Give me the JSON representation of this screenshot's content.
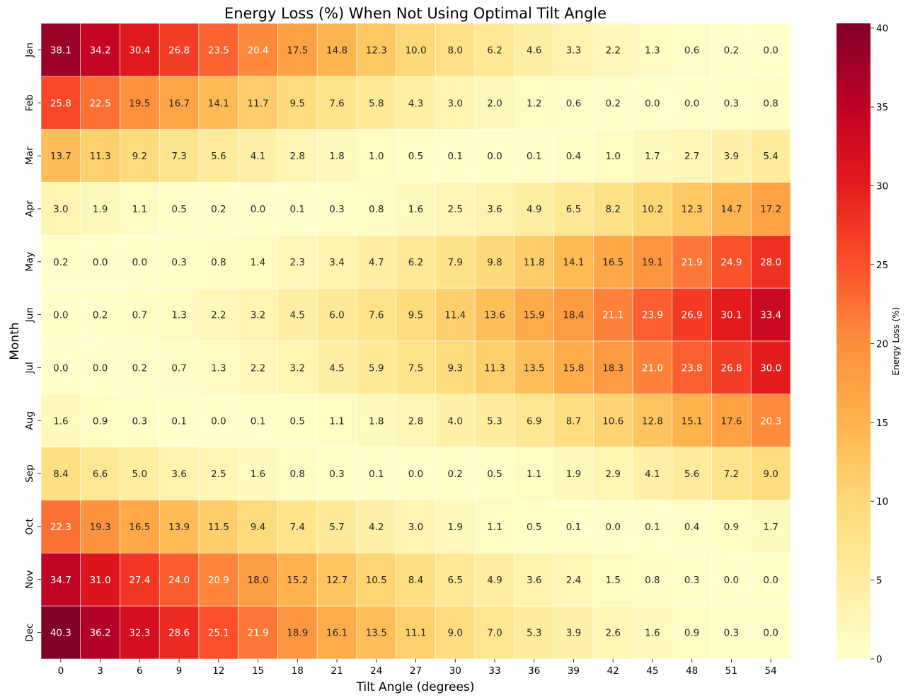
{
  "chart_data": {
    "type": "heatmap",
    "title": "Energy Loss (%) When Not Using Optimal Tilt Angle",
    "xlabel": "Tilt Angle (degrees)",
    "ylabel": "Month",
    "colorbar_label": "Energy Loss (%)",
    "colormap": "YlOrRd",
    "value_range": [
      0,
      40.3
    ],
    "colorbar_ticks": [
      0,
      5,
      10,
      15,
      20,
      25,
      30,
      35,
      40
    ],
    "x": [
      0,
      3,
      6,
      9,
      12,
      15,
      18,
      21,
      24,
      27,
      30,
      33,
      36,
      39,
      42,
      45,
      48,
      51,
      54
    ],
    "y": [
      "Jan",
      "Feb",
      "Mar",
      "Apr",
      "May",
      "Jun",
      "Jul",
      "Aug",
      "Sep",
      "Oct",
      "Nov",
      "Dec"
    ],
    "values": [
      [
        38.1,
        34.2,
        30.4,
        26.8,
        23.5,
        20.4,
        17.5,
        14.8,
        12.3,
        10.0,
        8.0,
        6.2,
        4.6,
        3.3,
        2.2,
        1.3,
        0.6,
        0.2,
        0.0
      ],
      [
        25.8,
        22.5,
        19.5,
        16.7,
        14.1,
        11.7,
        9.5,
        7.6,
        5.8,
        4.3,
        3.0,
        2.0,
        1.2,
        0.6,
        0.2,
        0.0,
        0.0,
        0.3,
        0.8
      ],
      [
        13.7,
        11.3,
        9.2,
        7.3,
        5.6,
        4.1,
        2.8,
        1.8,
        1.0,
        0.5,
        0.1,
        0.0,
        0.1,
        0.4,
        1.0,
        1.7,
        2.7,
        3.9,
        5.4
      ],
      [
        3.0,
        1.9,
        1.1,
        0.5,
        0.2,
        0.0,
        0.1,
        0.3,
        0.8,
        1.6,
        2.5,
        3.6,
        4.9,
        6.5,
        8.2,
        10.2,
        12.3,
        14.7,
        17.2
      ],
      [
        0.2,
        0.0,
        0.0,
        0.3,
        0.8,
        1.4,
        2.3,
        3.4,
        4.7,
        6.2,
        7.9,
        9.8,
        11.8,
        14.1,
        16.5,
        19.1,
        21.9,
        24.9,
        28.0
      ],
      [
        0.0,
        0.2,
        0.7,
        1.3,
        2.2,
        3.2,
        4.5,
        6.0,
        7.6,
        9.5,
        11.4,
        13.6,
        15.9,
        18.4,
        21.1,
        23.9,
        26.9,
        30.1,
        33.4
      ],
      [
        0.0,
        0.0,
        0.2,
        0.7,
        1.3,
        2.2,
        3.2,
        4.5,
        5.9,
        7.5,
        9.3,
        11.3,
        13.5,
        15.8,
        18.3,
        21.0,
        23.8,
        26.8,
        30.0
      ],
      [
        1.6,
        0.9,
        0.3,
        0.1,
        0.0,
        0.1,
        0.5,
        1.1,
        1.8,
        2.8,
        4.0,
        5.3,
        6.9,
        8.7,
        10.6,
        12.8,
        15.1,
        17.6,
        20.3
      ],
      [
        8.4,
        6.6,
        5.0,
        3.6,
        2.5,
        1.6,
        0.8,
        0.3,
        0.1,
        0.0,
        0.2,
        0.5,
        1.1,
        1.9,
        2.9,
        4.1,
        5.6,
        7.2,
        9.0
      ],
      [
        22.3,
        19.3,
        16.5,
        13.9,
        11.5,
        9.4,
        7.4,
        5.7,
        4.2,
        3.0,
        1.9,
        1.1,
        0.5,
        0.1,
        0.0,
        0.1,
        0.4,
        0.9,
        1.7
      ],
      [
        34.7,
        31.0,
        27.4,
        24.0,
        20.9,
        18.0,
        15.2,
        12.7,
        10.5,
        8.4,
        6.5,
        4.9,
        3.6,
        2.4,
        1.5,
        0.8,
        0.3,
        0.0,
        0.0
      ],
      [
        40.3,
        36.2,
        32.3,
        28.6,
        25.1,
        21.9,
        18.9,
        16.1,
        13.5,
        11.1,
        9.0,
        7.0,
        5.3,
        3.9,
        2.6,
        1.6,
        0.9,
        0.3,
        0.0
      ]
    ],
    "value_format": "1 decimal",
    "grid_lines": "white",
    "legend": "colorbar right"
  }
}
